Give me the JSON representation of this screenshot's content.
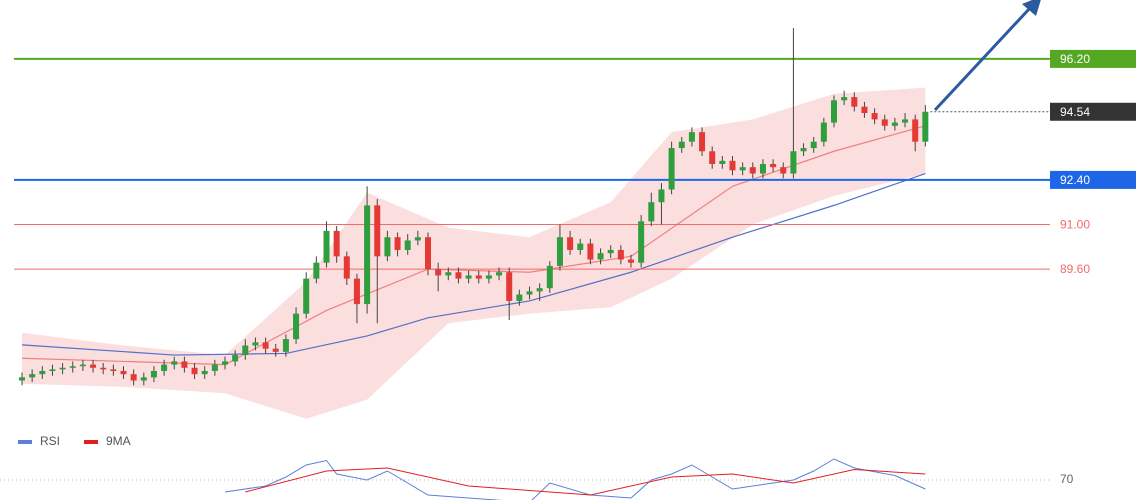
{
  "chart_data": {
    "type": "candlestick",
    "ylim": [
      84.86,
      98.05
    ],
    "candles": [
      [
        86.1,
        86.35,
        85.95,
        86.2
      ],
      [
        86.2,
        86.45,
        86.05,
        86.3
      ],
      [
        86.3,
        86.55,
        86.15,
        86.4
      ],
      [
        86.4,
        86.6,
        86.25,
        86.45
      ],
      [
        86.45,
        86.65,
        86.3,
        86.5
      ],
      [
        86.5,
        86.7,
        86.35,
        86.55
      ],
      [
        86.55,
        86.75,
        86.4,
        86.6
      ],
      [
        86.6,
        86.75,
        86.35,
        86.5
      ],
      [
        86.5,
        86.65,
        86.3,
        86.45
      ],
      [
        86.45,
        86.6,
        86.25,
        86.4
      ],
      [
        86.4,
        86.55,
        86.15,
        86.3
      ],
      [
        86.3,
        86.45,
        85.95,
        86.1
      ],
      [
        86.1,
        86.35,
        85.95,
        86.2
      ],
      [
        86.2,
        86.55,
        86.05,
        86.4
      ],
      [
        86.4,
        86.75,
        86.25,
        86.6
      ],
      [
        86.6,
        86.85,
        86.45,
        86.7
      ],
      [
        86.7,
        86.85,
        86.35,
        86.5
      ],
      [
        86.5,
        86.65,
        86.15,
        86.3
      ],
      [
        86.3,
        86.55,
        86.15,
        86.4
      ],
      [
        86.4,
        86.75,
        86.25,
        86.6
      ],
      [
        86.6,
        86.85,
        86.45,
        86.7
      ],
      [
        86.7,
        87.05,
        86.55,
        86.9
      ],
      [
        86.9,
        87.4,
        86.75,
        87.2
      ],
      [
        87.2,
        87.45,
        87.05,
        87.3
      ],
      [
        87.3,
        87.45,
        86.95,
        87.1
      ],
      [
        87.1,
        87.25,
        86.85,
        87.0
      ],
      [
        87.0,
        87.55,
        86.85,
        87.4
      ],
      [
        87.4,
        88.4,
        87.25,
        88.2
      ],
      [
        88.2,
        89.5,
        88.05,
        89.3
      ],
      [
        89.3,
        90.0,
        89.15,
        89.8
      ],
      [
        89.8,
        91.1,
        89.65,
        90.8
      ],
      [
        90.8,
        90.95,
        89.8,
        90.0
      ],
      [
        90.0,
        90.15,
        89.1,
        89.3
      ],
      [
        89.3,
        89.45,
        87.9,
        88.5
      ],
      [
        88.5,
        92.2,
        88.2,
        91.6
      ],
      [
        91.6,
        91.8,
        87.9,
        90.0
      ],
      [
        90.0,
        90.8,
        89.85,
        90.6
      ],
      [
        90.6,
        90.75,
        90.0,
        90.2
      ],
      [
        90.2,
        90.7,
        90.05,
        90.5
      ],
      [
        90.5,
        90.8,
        90.35,
        90.6
      ],
      [
        90.6,
        90.75,
        89.4,
        89.6
      ],
      [
        89.6,
        89.8,
        88.9,
        89.4
      ],
      [
        89.4,
        89.65,
        89.25,
        89.5
      ],
      [
        89.5,
        89.65,
        89.15,
        89.3
      ],
      [
        89.3,
        89.55,
        89.15,
        89.4
      ],
      [
        89.4,
        89.55,
        89.15,
        89.3
      ],
      [
        89.3,
        89.55,
        89.15,
        89.4
      ],
      [
        89.4,
        89.65,
        89.25,
        89.5
      ],
      [
        89.5,
        89.65,
        88.0,
        88.6
      ],
      [
        88.6,
        88.95,
        88.45,
        88.8
      ],
      [
        88.8,
        89.05,
        88.65,
        88.9
      ],
      [
        88.9,
        89.15,
        88.6,
        89.0
      ],
      [
        89.0,
        89.85,
        88.85,
        89.7
      ],
      [
        89.7,
        91.0,
        89.55,
        90.6
      ],
      [
        90.6,
        90.8,
        90.05,
        90.2
      ],
      [
        90.2,
        90.55,
        90.05,
        90.4
      ],
      [
        90.4,
        90.55,
        89.75,
        89.9
      ],
      [
        89.9,
        90.25,
        89.75,
        90.1
      ],
      [
        90.1,
        90.35,
        89.95,
        90.2
      ],
      [
        90.2,
        90.35,
        89.75,
        89.9
      ],
      [
        89.9,
        90.05,
        89.65,
        89.8
      ],
      [
        89.8,
        91.3,
        89.65,
        91.1
      ],
      [
        91.1,
        92.0,
        90.95,
        91.7
      ],
      [
        91.7,
        92.3,
        91.0,
        92.1
      ],
      [
        92.1,
        93.6,
        91.95,
        93.4
      ],
      [
        93.4,
        93.75,
        93.25,
        93.6
      ],
      [
        93.6,
        94.05,
        93.45,
        93.9
      ],
      [
        93.9,
        94.05,
        93.15,
        93.3
      ],
      [
        93.3,
        93.45,
        92.75,
        92.9
      ],
      [
        92.9,
        93.15,
        92.75,
        93.0
      ],
      [
        93.0,
        93.15,
        92.55,
        92.7
      ],
      [
        92.7,
        92.95,
        92.55,
        92.8
      ],
      [
        92.8,
        92.95,
        92.45,
        92.6
      ],
      [
        92.6,
        93.05,
        92.45,
        92.9
      ],
      [
        92.9,
        93.05,
        92.65,
        92.8
      ],
      [
        92.8,
        92.95,
        92.45,
        92.6
      ],
      [
        92.6,
        97.17,
        92.45,
        93.3
      ],
      [
        93.3,
        93.55,
        93.15,
        93.4
      ],
      [
        93.4,
        93.75,
        93.25,
        93.6
      ],
      [
        93.6,
        94.35,
        93.45,
        94.2
      ],
      [
        94.2,
        95.05,
        94.05,
        94.9
      ],
      [
        94.9,
        95.2,
        94.75,
        95.0
      ],
      [
        95.0,
        95.15,
        94.55,
        94.7
      ],
      [
        94.7,
        94.85,
        94.35,
        94.5
      ],
      [
        94.5,
        94.65,
        94.15,
        94.3
      ],
      [
        94.3,
        94.45,
        93.95,
        94.1
      ],
      [
        94.1,
        94.35,
        93.95,
        94.2
      ],
      [
        94.2,
        94.5,
        94.05,
        94.3
      ],
      [
        94.3,
        94.45,
        93.3,
        93.6
      ],
      [
        93.6,
        94.75,
        93.45,
        94.54
      ]
    ],
    "up_color": "#2e9e3e",
    "down_color": "#e53935",
    "band": {
      "color": "#f7b5b5",
      "x": [
        0,
        10,
        20,
        28,
        34,
        42,
        50,
        58,
        64,
        72,
        80,
        89
      ],
      "upper": [
        87.6,
        87.2,
        86.9,
        89.2,
        92.0,
        90.9,
        90.6,
        91.7,
        93.9,
        94.3,
        95.1,
        95.3
      ],
      "lower": [
        86.0,
        85.9,
        85.7,
        84.9,
        85.5,
        87.9,
        88.2,
        88.4,
        89.3,
        91.0,
        91.9,
        92.6
      ]
    },
    "overlays": [
      {
        "color": "#5470c6",
        "x": [
          0,
          15,
          26,
          34,
          40,
          50,
          60,
          70,
          80,
          89
        ],
        "values": [
          87.22,
          86.9,
          86.95,
          87.5,
          88.07,
          88.6,
          89.5,
          90.6,
          91.6,
          92.6
        ]
      },
      {
        "color": "#f08080",
        "x": [
          0,
          20,
          30,
          40,
          50,
          60,
          70,
          80,
          89
        ],
        "values": [
          86.8,
          86.6,
          88.3,
          89.6,
          89.5,
          90.0,
          92.2,
          93.3,
          94.1
        ]
      }
    ],
    "levels": [
      {
        "value": 96.2,
        "label": "96.20",
        "color": "#55a822",
        "boxed": true
      },
      {
        "value": 92.4,
        "label": "92.40",
        "color": "#1e66e8",
        "boxed": true
      },
      {
        "value": 91.0,
        "label": "91.00",
        "color": "#f26a6a",
        "boxed": false
      },
      {
        "value": 89.6,
        "label": "89.60",
        "color": "#f26a6a",
        "boxed": false
      }
    ],
    "last": {
      "value": 94.54,
      "label": "94.54",
      "color": "#333333"
    },
    "rsi": {
      "ylim": [
        30,
        90
      ],
      "yticks": [
        70
      ],
      "series": [
        {
          "name": "RSI",
          "color": "#5b7fdb",
          "x": [
            20,
            24,
            26,
            28,
            30,
            31,
            34,
            36,
            40,
            50,
            52,
            56,
            60,
            62,
            64,
            66,
            70,
            76,
            78,
            80,
            82,
            86,
            89
          ],
          "values": [
            62,
            66,
            72,
            80,
            83,
            74,
            70,
            76,
            60,
            55,
            68,
            60,
            58,
            70,
            74,
            80,
            64,
            70,
            76,
            84,
            78,
            73,
            64
          ]
        },
        {
          "name": "9MA",
          "color": "#e02020",
          "x": [
            22,
            30,
            36,
            44,
            56,
            64,
            70,
            76,
            82,
            89
          ],
          "values": [
            62,
            76,
            78,
            66,
            60,
            72,
            74,
            68,
            77,
            74
          ]
        }
      ]
    }
  }
}
